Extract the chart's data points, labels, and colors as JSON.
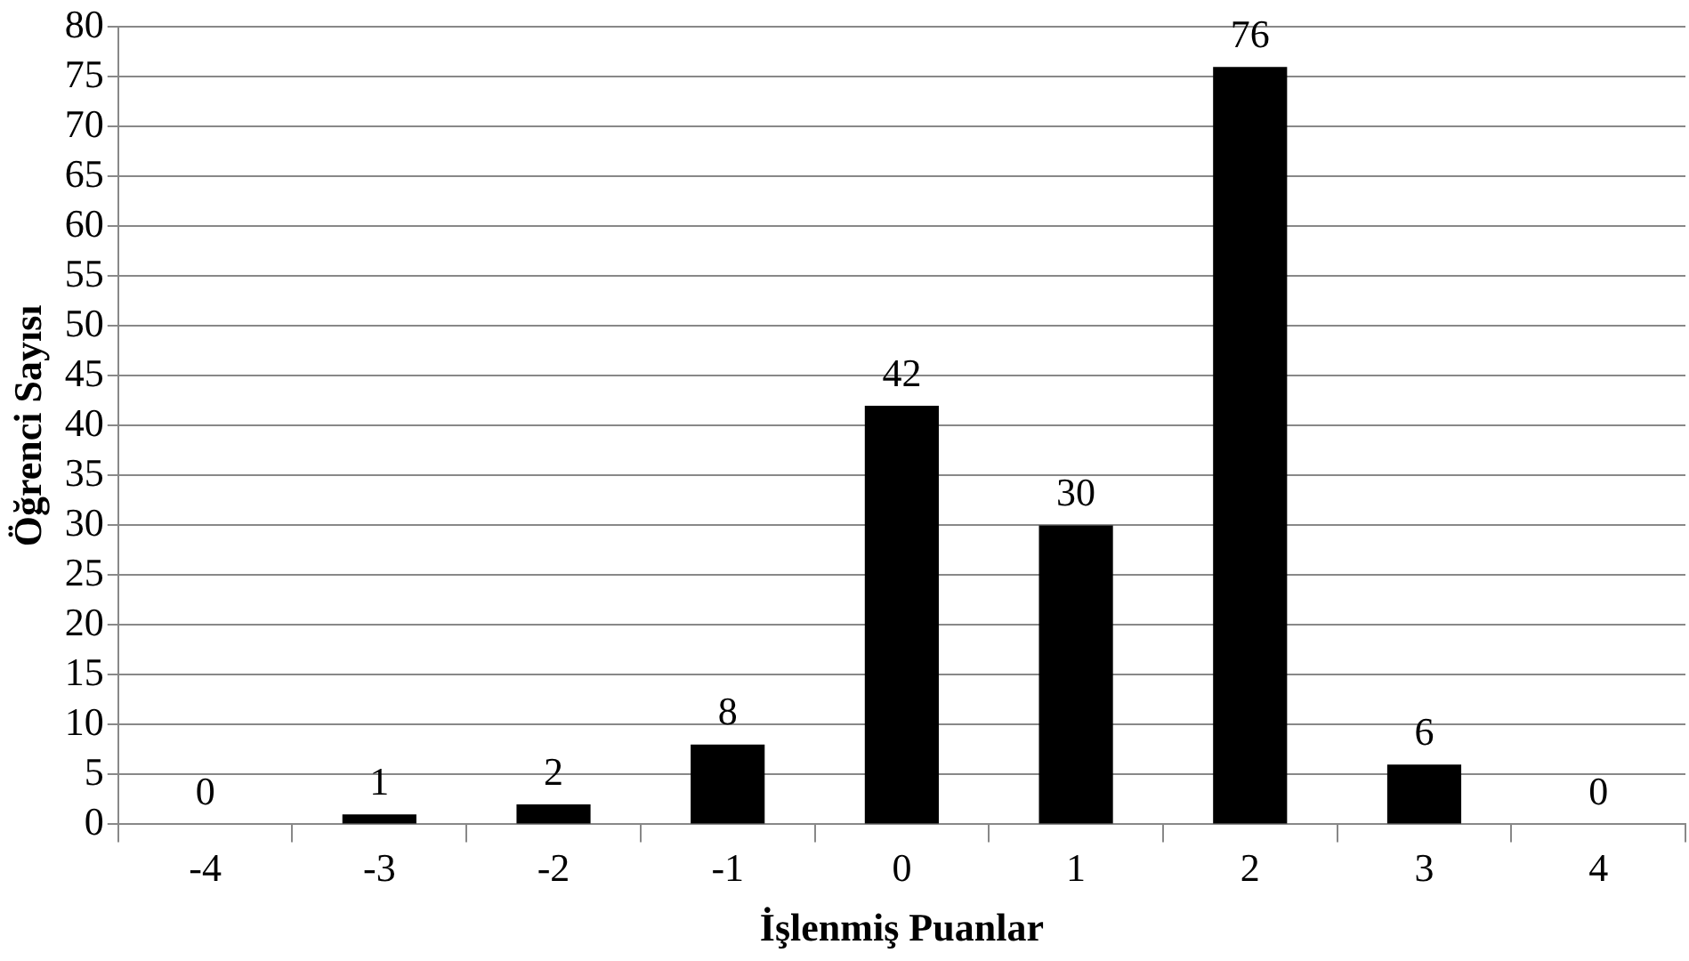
{
  "chart_data": {
    "type": "bar",
    "xlabel": "İşlenmiş Puanlar",
    "ylabel": "Öğrenci Sayısı",
    "categories": [
      "-4",
      "-3",
      "-2",
      "-1",
      "0",
      "1",
      "2",
      "3",
      "4"
    ],
    "values": [
      0,
      1,
      2,
      8,
      42,
      30,
      76,
      6,
      0
    ],
    "color": "#000000",
    "ylim": [
      0,
      80
    ],
    "yticks": [
      0,
      5,
      10,
      15,
      20,
      25,
      30,
      35,
      40,
      45,
      50,
      55,
      60,
      65,
      70,
      75,
      80
    ],
    "grid": "y",
    "data_labels": true
  }
}
